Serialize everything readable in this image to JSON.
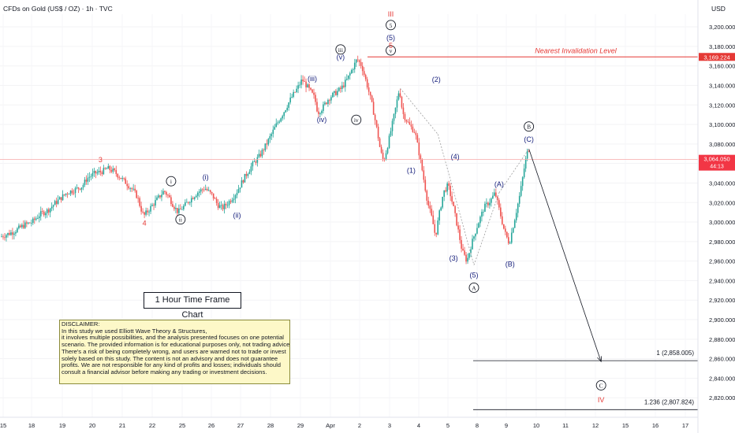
{
  "header": {
    "symbol": "CFDs on Gold (US$ / OZ) · 1h · TVC",
    "currency": "USD"
  },
  "colors": {
    "up": "#26a69a",
    "down": "#ef5350",
    "wave_red": "#e53935",
    "wave_blue": "#1a237e",
    "wave_black": "#131722",
    "price_line": "#f7a8a8"
  },
  "chart_data": {
    "type": "candlestick",
    "instrument": "CFDs on Gold (US$ / OZ)",
    "timeframe": "1h",
    "y_currency": "USD",
    "ylim": [
      2800,
      3213
    ],
    "y_ticks": [
      "3,200.000",
      "3,180.000",
      "3,160.000",
      "3,140.000",
      "3,120.000",
      "3,100.000",
      "3,080.000",
      "3,060.000",
      "3,040.000",
      "3,020.000",
      "3,000.000",
      "2,980.000",
      "2,960.000",
      "2,940.000",
      "2,920.000",
      "2,900.000",
      "2,880.000",
      "2,860.000",
      "2,840.000",
      "2,820.000"
    ],
    "y_tick_values": [
      3200,
      3180,
      3160,
      3140,
      3120,
      3100,
      3080,
      3060,
      3040,
      3020,
      3000,
      2980,
      2960,
      2940,
      2920,
      2900,
      2880,
      2860,
      2840,
      2820
    ],
    "x_ticks": [
      "15",
      "18",
      "19",
      "20",
      "21",
      "22",
      "25",
      "26",
      "27",
      "28",
      "29",
      "Apr",
      "2",
      "3",
      "4",
      "5",
      "8",
      "9",
      "10",
      "11",
      "12",
      "15",
      "16",
      "17"
    ],
    "current_price": {
      "label": "3,064.050",
      "countdown": "44:13",
      "value": 3064.05
    },
    "invalidation": {
      "label": "Nearest Invalidation Level",
      "price_label": "3,169.224",
      "value": 3169.224
    },
    "fib_levels": [
      {
        "label": "1 (2,858.005)",
        "value": 2858.005
      },
      {
        "label": "1.236 (2,807.824)",
        "value": 2807.824
      }
    ],
    "path": [
      [
        0,
        2985
      ],
      [
        8,
        2990
      ],
      [
        15,
        2997
      ],
      [
        20,
        3000
      ],
      [
        25,
        3008
      ],
      [
        30,
        3012
      ],
      [
        35,
        3020
      ],
      [
        42,
        3030
      ],
      [
        47,
        3033
      ],
      [
        52,
        3037
      ],
      [
        55,
        3045
      ],
      [
        60,
        3050
      ],
      [
        65,
        3052
      ],
      [
        68,
        3055
      ],
      [
        72,
        3052
      ],
      [
        76,
        3046
      ],
      [
        80,
        3040
      ],
      [
        84,
        3033
      ],
      [
        87,
        3026
      ],
      [
        89,
        3015
      ],
      [
        91,
        3006
      ],
      [
        94,
        3012
      ],
      [
        97,
        3018
      ],
      [
        101,
        3026
      ],
      [
        104,
        3032
      ],
      [
        107,
        3026
      ],
      [
        110,
        3017
      ],
      [
        113,
        3010
      ],
      [
        116,
        3015
      ],
      [
        120,
        3022
      ],
      [
        125,
        3030
      ],
      [
        130,
        3035
      ],
      [
        135,
        3027
      ],
      [
        138,
        3018
      ],
      [
        141,
        3014
      ],
      [
        145,
        3020
      ],
      [
        150,
        3030
      ],
      [
        155,
        3045
      ],
      [
        160,
        3058
      ],
      [
        165,
        3068
      ],
      [
        170,
        3082
      ],
      [
        175,
        3098
      ],
      [
        180,
        3112
      ],
      [
        185,
        3127
      ],
      [
        189,
        3137
      ],
      [
        192,
        3146
      ],
      [
        196,
        3137
      ],
      [
        200,
        3127
      ],
      [
        202,
        3112
      ],
      [
        205,
        3117
      ],
      [
        209,
        3127
      ],
      [
        213,
        3132
      ],
      [
        217,
        3137
      ],
      [
        221,
        3147
      ],
      [
        224,
        3157
      ],
      [
        227,
        3167
      ],
      [
        230,
        3160
      ],
      [
        234,
        3137
      ],
      [
        237,
        3117
      ],
      [
        240,
        3092
      ],
      [
        242,
        3072
      ],
      [
        244,
        3062
      ],
      [
        247,
        3082
      ],
      [
        251,
        3112
      ],
      [
        254,
        3137
      ],
      [
        256,
        3112
      ],
      [
        260,
        3100
      ],
      [
        264,
        3092
      ],
      [
        268,
        3058
      ],
      [
        272,
        3020
      ],
      [
        275,
        3002
      ],
      [
        277,
        2985
      ],
      [
        279,
        3005
      ],
      [
        282,
        3030
      ],
      [
        285,
        3038
      ],
      [
        288,
        3018
      ],
      [
        291,
        2995
      ],
      [
        294,
        2970
      ],
      [
        297,
        2960
      ],
      [
        300,
        2978
      ],
      [
        304,
        2998
      ],
      [
        308,
        3015
      ],
      [
        312,
        3022
      ],
      [
        315,
        3030
      ],
      [
        318,
        3010
      ],
      [
        321,
        2990
      ],
      [
        324,
        2978
      ],
      [
        327,
        3000
      ],
      [
        331,
        3030
      ],
      [
        334,
        3060
      ],
      [
        336,
        3075
      ]
    ],
    "x_range": [
      0,
      336
    ],
    "wave_labels": [
      {
        "text": "3",
        "t": 63,
        "v": 3055,
        "color": "wave_red",
        "pos": "above"
      },
      {
        "text": "4",
        "t": 91,
        "v": 3006,
        "color": "wave_red",
        "pos": "below"
      },
      {
        "text": "i",
        "t": 108,
        "v": 3033,
        "color": "wave_black",
        "pos": "above",
        "circle": true
      },
      {
        "text": "ii",
        "t": 114,
        "v": 3010,
        "color": "wave_black",
        "pos": "below",
        "circle": true
      },
      {
        "text": "(i)",
        "t": 130,
        "v": 3037,
        "color": "wave_blue",
        "pos": "above"
      },
      {
        "text": "(ii)",
        "t": 150,
        "v": 3014,
        "color": "wave_blue",
        "pos": "below"
      },
      {
        "text": "(iii)",
        "t": 198,
        "v": 3138,
        "color": "wave_blue",
        "pos": "above"
      },
      {
        "text": "(iv)",
        "t": 204,
        "v": 3112,
        "color": "wave_blue",
        "pos": "below"
      },
      {
        "text": "(v)",
        "t": 216,
        "v": 3160,
        "color": "wave_blue",
        "pos": "above"
      },
      {
        "text": "iii",
        "t": 216,
        "v": 3168,
        "color": "wave_black",
        "pos": "above",
        "circle": true
      },
      {
        "text": "iv",
        "t": 226,
        "v": 3112,
        "color": "wave_black",
        "pos": "below",
        "circle": true
      },
      {
        "text": "v",
        "t": 248,
        "v": 3167,
        "color": "wave_black",
        "pos": "above",
        "circle": true
      },
      {
        "text": "5",
        "t": 248,
        "v": 3172,
        "color": "wave_red",
        "pos": "above"
      },
      {
        "text": "(5)",
        "t": 248,
        "v": 3180,
        "color": "wave_blue",
        "pos": "above"
      },
      {
        "text": "5",
        "t": 248,
        "v": 3193,
        "color": "wave_black",
        "pos": "above",
        "circle": true
      },
      {
        "text": "III",
        "t": 248,
        "v": 3204,
        "color": "wave_red",
        "pos": "above"
      },
      {
        "text": "(1)",
        "t": 261,
        "v": 3060,
        "color": "wave_blue",
        "pos": "below"
      },
      {
        "text": "(2)",
        "t": 277,
        "v": 3137,
        "color": "wave_blue",
        "pos": "above"
      },
      {
        "text": "(3)",
        "t": 288,
        "v": 2970,
        "color": "wave_blue",
        "pos": "below"
      },
      {
        "text": "(4)",
        "t": 289,
        "v": 3058,
        "color": "wave_blue",
        "pos": "above"
      },
      {
        "text": "(5)",
        "t": 301,
        "v": 2953,
        "color": "wave_blue",
        "pos": "below"
      },
      {
        "text": "A",
        "t": 301,
        "v": 2940,
        "color": "wave_black",
        "pos": "below",
        "circle": true
      },
      {
        "text": "(A)",
        "t": 317,
        "v": 3030,
        "color": "wave_blue",
        "pos": "above"
      },
      {
        "text": "(B)",
        "t": 324,
        "v": 2964,
        "color": "wave_blue",
        "pos": "below"
      },
      {
        "text": "(C)",
        "t": 336,
        "v": 3076,
        "color": "wave_blue",
        "pos": "above"
      },
      {
        "text": "B",
        "t": 336,
        "v": 3089,
        "color": "wave_black",
        "pos": "above",
        "circle": true
      },
      {
        "text": "C",
        "t": 382,
        "v": 2840,
        "color": "wave_black",
        "pos": "below",
        "circle": true
      },
      {
        "text": "IV",
        "t": 382,
        "v": 2825,
        "color": "wave_red",
        "pos": "below"
      }
    ],
    "projection": {
      "from": [
        336,
        3075
      ],
      "to": [
        382,
        2857
      ]
    }
  },
  "labels": {
    "timeframe_box": "1 Hour Time Frame Chart",
    "disclaimer": [
      "DISCLAIMER:",
      "In this study we used Elliott Wave Theory & Structures,",
      "it involves multiple possibilities, and the analysis presented focuses on one potential",
      "scenario. The provided information is for educational purposes only, not trading advice.",
      "There's a risk of being completely wrong, and users are warned not to trade or invest",
      "solely based on this study. The content is not an advisory and does not guarantee",
      "profits. We are not responsible for any kind of profits and losses; individuals should",
      "consult a financial advisor before making any trading or investment decisions."
    ]
  }
}
